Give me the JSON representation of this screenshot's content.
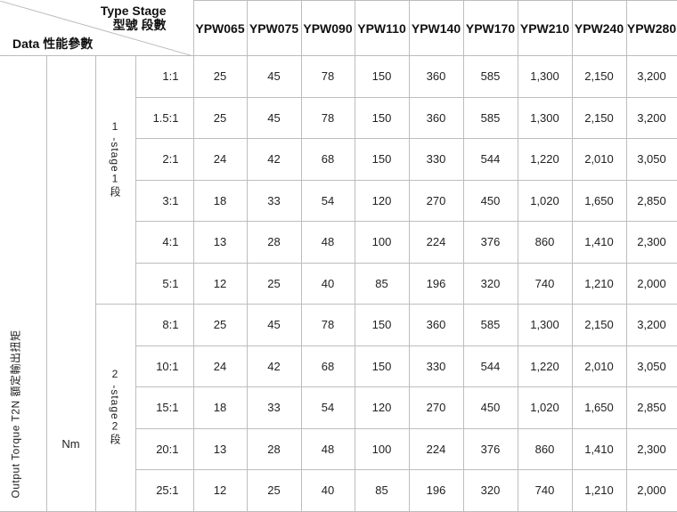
{
  "header": {
    "type_stage_en": "Type Stage",
    "type_stage_zh": "型號 段數",
    "data_label": "Data 性能參數",
    "models": [
      "YPW065",
      "YPW075",
      "YPW090",
      "YPW110",
      "YPW140",
      "YPW170",
      "YPW210",
      "YPW240",
      "YPW280"
    ]
  },
  "parameter": {
    "name": "Output Torque T2N 額定輸出扭矩",
    "unit": "Nm"
  },
  "stages": [
    {
      "num": "1",
      "label": "-stage",
      "num2": "1",
      "zh": "段"
    },
    {
      "num": "2",
      "label": "-stage",
      "num2": "2",
      "zh": "段"
    }
  ],
  "rows": [
    {
      "stage": 0,
      "ratio": "1:1",
      "values": [
        "25",
        "45",
        "78",
        "150",
        "360",
        "585",
        "1,300",
        "2,150",
        "3,200"
      ]
    },
    {
      "stage": 0,
      "ratio": "1.5:1",
      "values": [
        "25",
        "45",
        "78",
        "150",
        "360",
        "585",
        "1,300",
        "2,150",
        "3,200"
      ]
    },
    {
      "stage": 0,
      "ratio": "2:1",
      "values": [
        "24",
        "42",
        "68",
        "150",
        "330",
        "544",
        "1,220",
        "2,010",
        "3,050"
      ]
    },
    {
      "stage": 0,
      "ratio": "3:1",
      "values": [
        "18",
        "33",
        "54",
        "120",
        "270",
        "450",
        "1,020",
        "1,650",
        "2,850"
      ]
    },
    {
      "stage": 0,
      "ratio": "4:1",
      "values": [
        "13",
        "28",
        "48",
        "100",
        "224",
        "376",
        "860",
        "1,410",
        "2,300"
      ]
    },
    {
      "stage": 0,
      "ratio": "5:1",
      "values": [
        "12",
        "25",
        "40",
        "85",
        "196",
        "320",
        "740",
        "1,210",
        "2,000"
      ]
    },
    {
      "stage": 1,
      "ratio": "8:1",
      "values": [
        "25",
        "45",
        "78",
        "150",
        "360",
        "585",
        "1,300",
        "2,150",
        "3,200"
      ]
    },
    {
      "stage": 1,
      "ratio": "10:1",
      "values": [
        "24",
        "42",
        "68",
        "150",
        "330",
        "544",
        "1,220",
        "2,010",
        "3,050"
      ]
    },
    {
      "stage": 1,
      "ratio": "15:1",
      "values": [
        "18",
        "33",
        "54",
        "120",
        "270",
        "450",
        "1,020",
        "1,650",
        "2,850"
      ]
    },
    {
      "stage": 1,
      "ratio": "20:1",
      "values": [
        "13",
        "28",
        "48",
        "100",
        "224",
        "376",
        "860",
        "1,410",
        "2,300"
      ]
    },
    {
      "stage": 1,
      "ratio": "25:1",
      "values": [
        "12",
        "25",
        "40",
        "85",
        "196",
        "320",
        "740",
        "1,210",
        "2,000"
      ]
    }
  ]
}
